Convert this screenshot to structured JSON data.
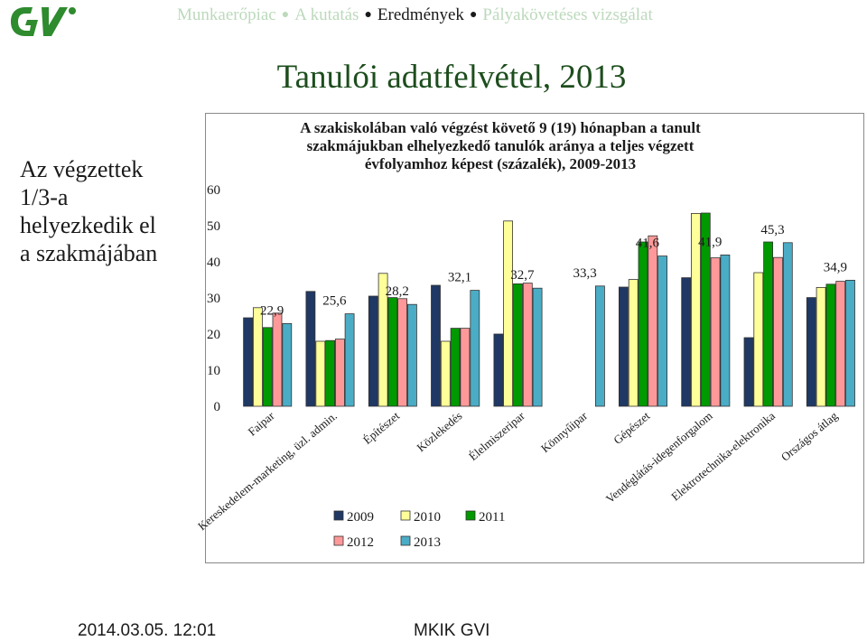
{
  "header": {
    "nav": [
      {
        "label": "Munkaerőpiac",
        "active": false
      },
      {
        "label": "A kutatás",
        "active": false
      },
      {
        "label": "Eredmények",
        "active": true
      },
      {
        "label": "Pályakövetéses vizsgálat",
        "active": false
      }
    ],
    "title": "Tanulói adatfelvétel, 2013"
  },
  "side_note": {
    "lines": [
      "Az végzettek",
      "1/3-a",
      "helyezkedik el",
      "a szakmájában"
    ]
  },
  "footer": {
    "date": "2014.03.05. 12:01",
    "org": "MKIK GVI"
  },
  "colors": {
    "brand_green": "#2e8b2e",
    "title_green": "#1d4d1d",
    "series": [
      "#1f3864",
      "#ffff99",
      "#009900",
      "#ff9999",
      "#4bacc6"
    ]
  },
  "chart_data": {
    "type": "bar",
    "title_lines": [
      "A szakiskolában való végzést követő 9 (19) hónapban a tanult",
      "szakmájukban elhelyezkedő tanulók aránya a teljes végzett",
      "évfolyamhoz képest (százalék), 2009-2013"
    ],
    "categories": [
      "Faipar",
      "Kereskedelem-marketing, üzl. admin.",
      "Építészet",
      "Közlekedés",
      "Élelmiszeripar",
      "Könnyűipar",
      "Gépészet",
      "Vendéglátás-idegenforgalom",
      "Elektrotechnika-elektronika",
      "Országos átlag"
    ],
    "series": [
      {
        "name": "2009",
        "values": [
          24.5,
          31.8,
          30.5,
          33.5,
          20,
          null,
          33,
          35.6,
          19,
          30.1
        ]
      },
      {
        "name": "2010",
        "values": [
          27.3,
          18,
          36.8,
          18,
          51.3,
          null,
          35.1,
          53.4,
          37,
          32.9
        ]
      },
      {
        "name": "2011",
        "values": [
          21.8,
          18.2,
          30.1,
          21.6,
          33.9,
          null,
          45.5,
          53.5,
          45.5,
          33.8
        ]
      },
      {
        "name": "2012",
        "values": [
          25.8,
          18.6,
          29.8,
          21.6,
          34.1,
          null,
          47.2,
          41.1,
          41.2,
          34.6
        ]
      },
      {
        "name": "2013",
        "values": [
          22.9,
          25.6,
          28.2,
          32.1,
          32.7,
          33.3,
          41.6,
          41.9,
          45.3,
          34.9
        ]
      }
    ],
    "data_labels": [
      "22,9",
      "25,6",
      "28,2",
      "32,1",
      "32,7",
      "33,3",
      "41,6",
      "41,9",
      "45,3",
      "34,9"
    ],
    "yticks": [
      "0",
      "10",
      "20",
      "30",
      "40",
      "50",
      "60"
    ],
    "ylim": [
      0,
      60
    ],
    "grid": false,
    "legend_position": "bottom"
  }
}
